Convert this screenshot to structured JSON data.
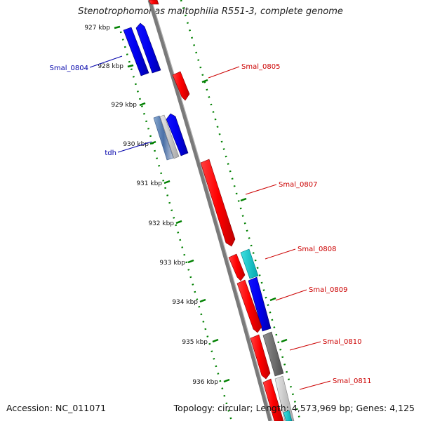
{
  "title": "Stenotrophomonas maltophilia R551-3, complete genome",
  "footer": {
    "accession": "Accession: NC_011071",
    "topology": "Topology: circular; Length: 4,573,969 bp; Genes: 4,125"
  },
  "ticks": [
    "927 kbp",
    "928 kbp",
    "929 kbp",
    "930 kbp",
    "931 kbp",
    "932 kbp",
    "933 kbp",
    "934 kbp",
    "935 kbp",
    "936 kbp"
  ],
  "gene_labels": [
    {
      "name": "Smal_0804",
      "color": "#0000aa"
    },
    {
      "name": "tdh",
      "color": "#0000aa"
    },
    {
      "name": "Smal_0805",
      "color": "#cc0000"
    },
    {
      "name": "Smal_0807",
      "color": "#cc0000"
    },
    {
      "name": "Smal_0808",
      "color": "#cc0000"
    },
    {
      "name": "Smal_0809",
      "color": "#cc0000"
    },
    {
      "name": "Smal_0810",
      "color": "#cc0000"
    },
    {
      "name": "Smal_0811",
      "color": "#cc0000"
    }
  ],
  "colors": {
    "forward_strand": "#ff0000",
    "reverse_strand": "#0000ff",
    "rna": "#00cccc",
    "pseudo": "#888888",
    "backbone": "#808080",
    "tick_marks": "#008000"
  }
}
